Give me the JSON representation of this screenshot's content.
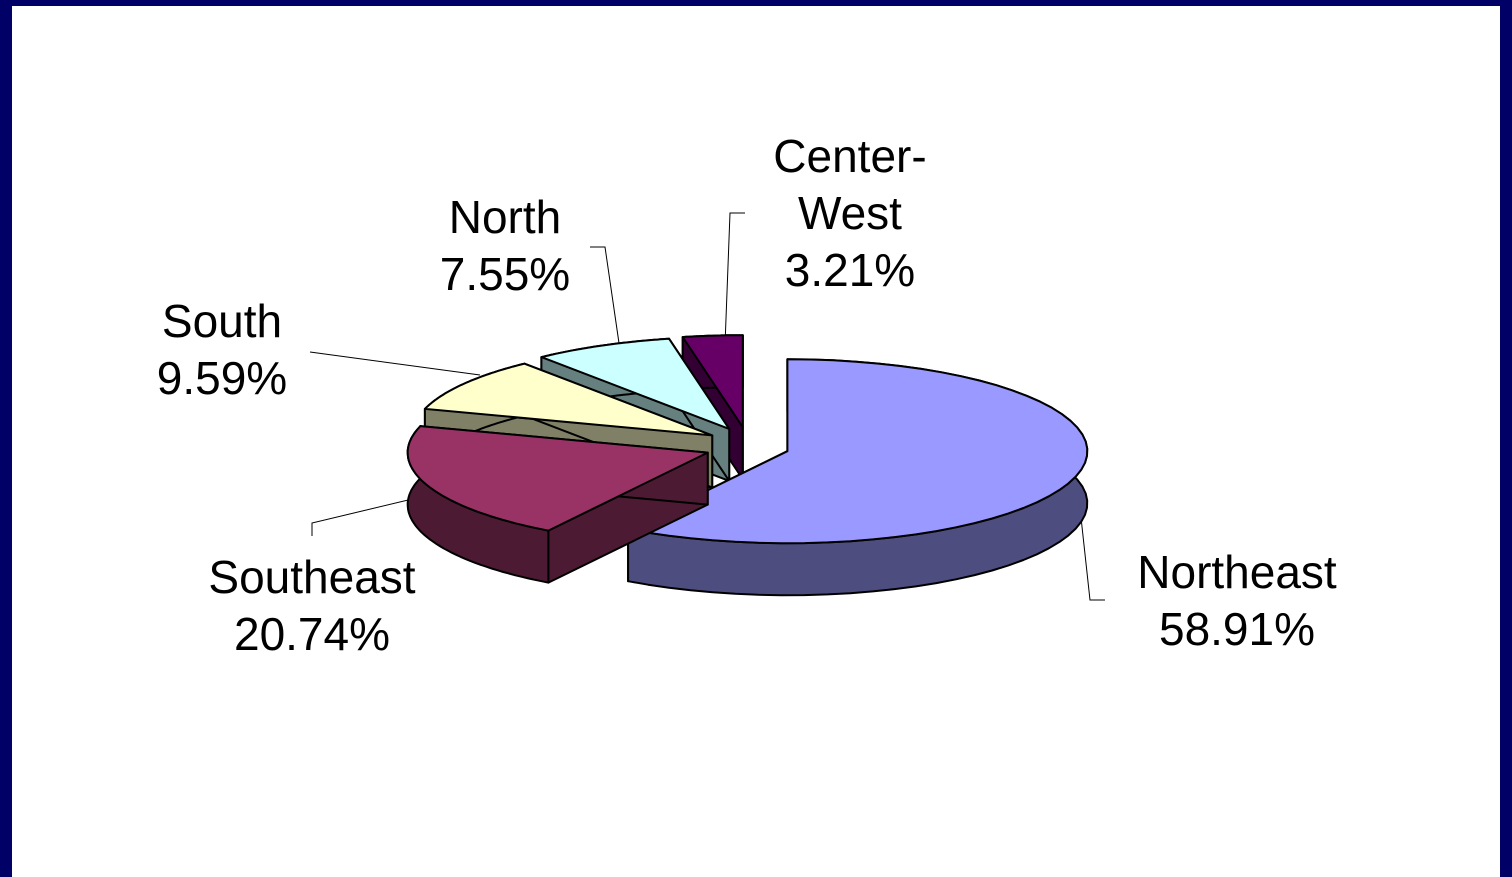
{
  "chart_data": {
    "type": "pie",
    "three_d": true,
    "exploded": true,
    "categories": [
      "Northeast",
      "Southeast",
      "South",
      "North",
      "Center-West"
    ],
    "values": [
      58.91,
      20.74,
      9.59,
      7.55,
      3.21
    ],
    "value_labels": [
      "58.91%",
      "20.74%",
      "9.59%",
      "7.55%",
      "3.21%"
    ],
    "colors": [
      "#9999ff",
      "#993366",
      "#ffffcc",
      "#ccffff",
      "#660066"
    ]
  }
}
